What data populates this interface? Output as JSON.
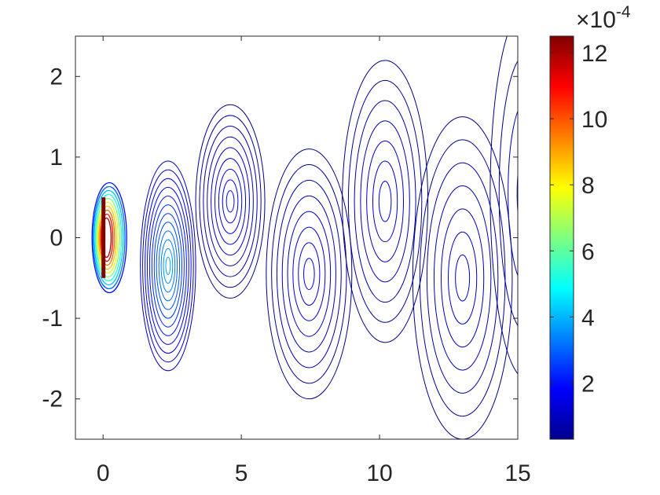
{
  "chart_data": {
    "type": "contour",
    "xlim": [
      -1,
      15
    ],
    "ylim": [
      -2.5,
      2.5
    ],
    "x_ticks": [
      0,
      5,
      10,
      15
    ],
    "y_ticks": [
      -2,
      -1,
      0,
      1,
      2
    ],
    "grid": false,
    "colorbar": {
      "label": "×10",
      "exponent": "-4",
      "range": [
        0.3,
        12.5
      ],
      "ticks": [
        2,
        4,
        6,
        8,
        10,
        12
      ],
      "colormap": "jet"
    },
    "plate": {
      "x": 0,
      "y_range": [
        -0.5,
        0.5
      ]
    },
    "vortices": [
      {
        "x": 2.35,
        "y": -0.35,
        "rx": 1.0,
        "ry": 1.3,
        "levels": 12,
        "min_level": 1.0,
        "max_level": 3.8
      },
      {
        "x": 4.6,
        "y": 0.45,
        "rx": 1.25,
        "ry": 1.2,
        "levels": 9,
        "min_level": 0.4,
        "max_level": 2.0
      },
      {
        "x": 7.45,
        "y": -0.45,
        "rx": 1.55,
        "ry": 1.55,
        "levels": 8,
        "min_level": 0.4,
        "max_level": 1.6
      },
      {
        "x": 10.2,
        "y": 0.45,
        "rx": 1.55,
        "ry": 1.75,
        "levels": 7,
        "min_level": 0.4,
        "max_level": 1.4
      },
      {
        "x": 13.0,
        "y": -0.5,
        "rx": 1.8,
        "ry": 2.0,
        "levels": 7,
        "min_level": 0.4,
        "max_level": 1.3
      },
      {
        "x": 15.3,
        "y": 0.55,
        "rx": 1.3,
        "ry": 2.3,
        "levels": 4,
        "min_level": 0.4,
        "max_level": 0.9
      }
    ]
  }
}
